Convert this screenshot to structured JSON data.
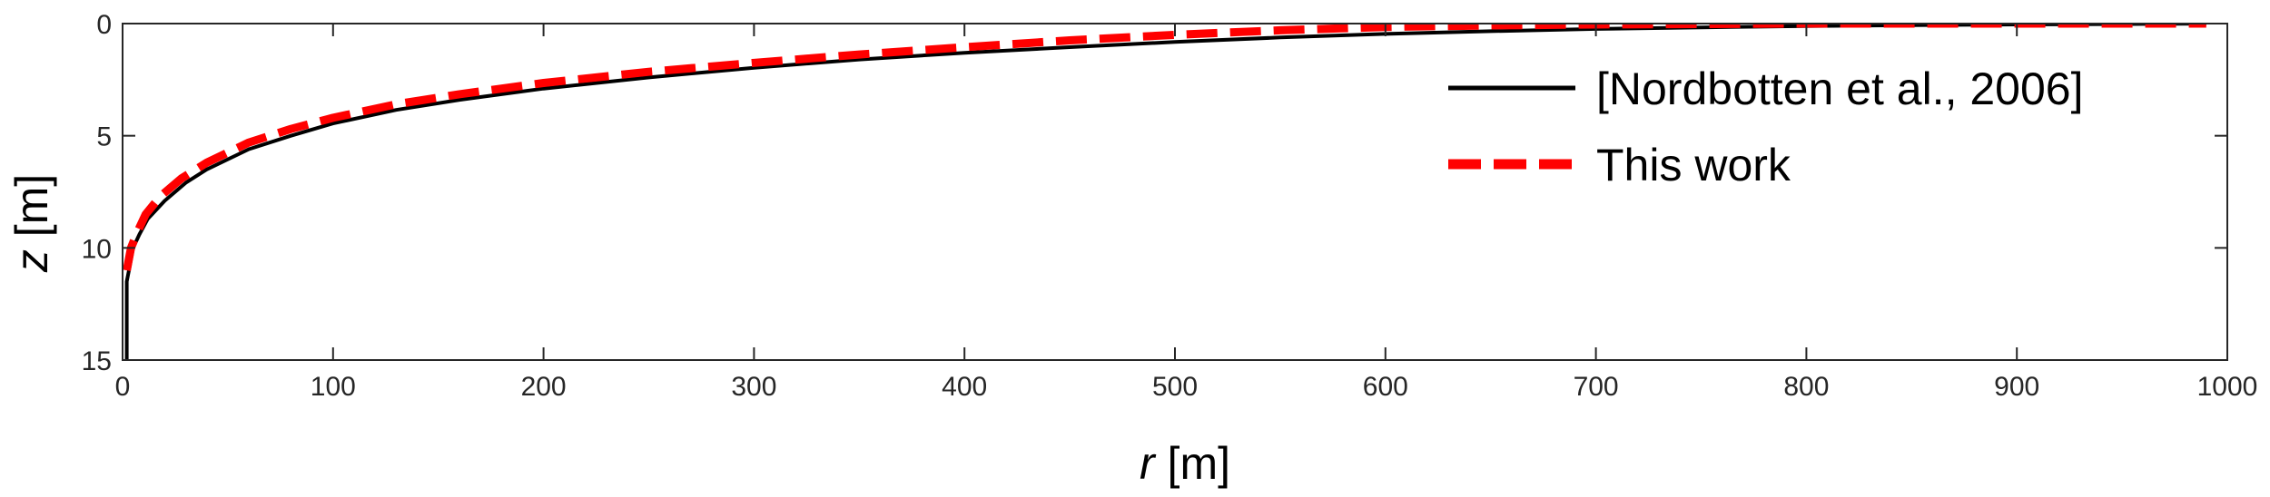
{
  "chart_data": {
    "type": "line",
    "xlabel_var": "r",
    "xlabel_unit": " [m]",
    "ylabel_var": "z",
    "ylabel_unit": " [m]",
    "xlim": [
      0,
      1000
    ],
    "ylim": [
      0,
      15
    ],
    "y_reversed": true,
    "xticks": [
      0,
      100,
      200,
      300,
      400,
      500,
      600,
      700,
      800,
      900,
      1000
    ],
    "yticks": [
      0,
      5,
      10,
      15
    ],
    "grid": false,
    "legend_position": "top-right",
    "series": [
      {
        "name": "[Nordbotten et al., 2006]",
        "color": "#000000",
        "style": "solid",
        "points": [
          [
            2,
            15
          ],
          [
            2,
            14
          ],
          [
            2,
            13
          ],
          [
            2,
            12
          ],
          [
            2,
            11.5
          ],
          [
            3,
            11
          ],
          [
            5,
            10
          ],
          [
            8,
            9.4
          ],
          [
            12,
            8.7
          ],
          [
            20,
            7.9
          ],
          [
            30,
            7.1
          ],
          [
            40,
            6.5
          ],
          [
            60,
            5.6
          ],
          [
            80,
            5.0
          ],
          [
            100,
            4.45
          ],
          [
            130,
            3.85
          ],
          [
            160,
            3.4
          ],
          [
            200,
            2.9
          ],
          [
            250,
            2.4
          ],
          [
            300,
            1.97
          ],
          [
            350,
            1.6
          ],
          [
            400,
            1.3
          ],
          [
            450,
            1.05
          ],
          [
            500,
            0.82
          ],
          [
            550,
            0.62
          ],
          [
            600,
            0.46
          ],
          [
            650,
            0.34
          ],
          [
            700,
            0.24
          ],
          [
            750,
            0.17
          ],
          [
            800,
            0.11
          ],
          [
            850,
            0.07
          ],
          [
            900,
            0.04
          ],
          [
            950,
            0.02
          ],
          [
            990,
            0.0
          ]
        ]
      },
      {
        "name": "This work",
        "color": "#ff0000",
        "style": "dashed",
        "points": [
          [
            2,
            11
          ],
          [
            4,
            10
          ],
          [
            7,
            9.3
          ],
          [
            11,
            8.5
          ],
          [
            18,
            7.7
          ],
          [
            28,
            6.9
          ],
          [
            40,
            6.2
          ],
          [
            60,
            5.3
          ],
          [
            80,
            4.7
          ],
          [
            100,
            4.2
          ],
          [
            130,
            3.6
          ],
          [
            160,
            3.15
          ],
          [
            200,
            2.65
          ],
          [
            250,
            2.15
          ],
          [
            300,
            1.75
          ],
          [
            350,
            1.38
          ],
          [
            400,
            1.05
          ],
          [
            450,
            0.75
          ],
          [
            500,
            0.5
          ],
          [
            550,
            0.3
          ],
          [
            600,
            0.15
          ],
          [
            650,
            0.08
          ],
          [
            700,
            0.04
          ],
          [
            800,
            0.0
          ],
          [
            900,
            0.0
          ],
          [
            990,
            0.0
          ]
        ]
      }
    ]
  }
}
